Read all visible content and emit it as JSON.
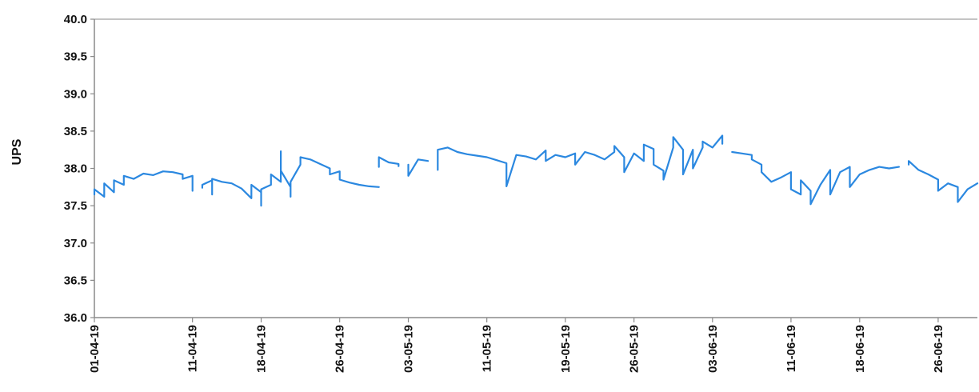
{
  "chart_data": {
    "type": "line",
    "title": "",
    "xlabel": "",
    "ylabel": "UPS",
    "ylim": [
      36.0,
      40.0
    ],
    "yticks": [
      "36.0",
      "36.5",
      "37.0",
      "37.5",
      "38.0",
      "38.5",
      "39.0",
      "39.5",
      "40.0"
    ],
    "xlim": [
      "2019-04-01",
      "2019-06-30"
    ],
    "xticks": [
      {
        "date": "2019-04-01",
        "label": "01-04-19"
      },
      {
        "date": "2019-04-11",
        "label": "11-04-19"
      },
      {
        "date": "2019-04-18",
        "label": "18-04-19"
      },
      {
        "date": "2019-04-26",
        "label": "26-04-19"
      },
      {
        "date": "2019-05-03",
        "label": "03-05-19"
      },
      {
        "date": "2019-05-11",
        "label": "11-05-19"
      },
      {
        "date": "2019-05-19",
        "label": "19-05-19"
      },
      {
        "date": "2019-05-26",
        "label": "26-05-19"
      },
      {
        "date": "2019-06-03",
        "label": "03-06-19"
      },
      {
        "date": "2019-06-11",
        "label": "11-06-19"
      },
      {
        "date": "2019-06-18",
        "label": "18-06-19"
      },
      {
        "date": "2019-06-26",
        "label": "26-06-19"
      }
    ],
    "grid": false,
    "legend": "none",
    "series": [
      {
        "color": "#2b88e0",
        "segments": [
          [
            [
              "2019-04-01",
              37.65
            ],
            [
              "2019-04-01",
              37.72
            ],
            [
              "2019-04-02",
              37.62
            ],
            [
              "2019-04-02",
              37.8
            ],
            [
              "2019-04-03",
              37.68
            ],
            [
              "2019-04-03",
              37.84
            ],
            [
              "2019-04-04",
              37.78
            ],
            [
              "2019-04-04",
              37.9
            ],
            [
              "2019-04-05",
              37.86
            ],
            [
              "2019-04-06",
              37.93
            ],
            [
              "2019-04-07",
              37.91
            ],
            [
              "2019-04-08",
              37.96
            ],
            [
              "2019-04-09",
              37.95
            ],
            [
              "2019-04-10",
              37.92
            ],
            [
              "2019-04-10",
              37.86
            ],
            [
              "2019-04-11",
              37.9
            ],
            [
              "2019-04-11",
              37.7
            ],
            [
              "2019-04-11",
              37.84
            ]
          ],
          [
            [
              "2019-04-12",
              37.74
            ],
            [
              "2019-04-12",
              37.78
            ],
            [
              "2019-04-13",
              37.84
            ],
            [
              "2019-04-13",
              37.65
            ],
            [
              "2019-04-13",
              37.86
            ],
            [
              "2019-04-14",
              37.82
            ],
            [
              "2019-04-15",
              37.8
            ],
            [
              "2019-04-16",
              37.73
            ],
            [
              "2019-04-17",
              37.6
            ],
            [
              "2019-04-17",
              37.78
            ],
            [
              "2019-04-18",
              37.68
            ],
            [
              "2019-04-18",
              37.5
            ],
            [
              "2019-04-18",
              37.72
            ],
            [
              "2019-04-19",
              37.78
            ],
            [
              "2019-04-19",
              37.92
            ],
            [
              "2019-04-20",
              37.82
            ],
            [
              "2019-04-20",
              38.05
            ],
            [
              "2019-04-20",
              38.23
            ],
            [
              "2019-04-20",
              37.97
            ],
            [
              "2019-04-21",
              37.75
            ],
            [
              "2019-04-21",
              37.62
            ],
            [
              "2019-04-21",
              37.82
            ],
            [
              "2019-04-22",
              38.05
            ],
            [
              "2019-04-22",
              38.15
            ],
            [
              "2019-04-23",
              38.12
            ],
            [
              "2019-04-24",
              38.06
            ],
            [
              "2019-04-25",
              38.0
            ],
            [
              "2019-04-25",
              37.92
            ],
            [
              "2019-04-26",
              37.96
            ],
            [
              "2019-04-26",
              37.85
            ],
            [
              "2019-04-27",
              37.81
            ],
            [
              "2019-04-28",
              37.78
            ],
            [
              "2019-04-29",
              37.76
            ],
            [
              "2019-04-30",
              37.75
            ]
          ],
          [
            [
              "2019-04-30",
              38.02
            ],
            [
              "2019-04-30",
              38.15
            ],
            [
              "2019-05-01",
              38.08
            ],
            [
              "2019-05-02",
              38.06
            ],
            [
              "2019-05-02",
              38.03
            ]
          ],
          [
            [
              "2019-05-03",
              38.05
            ],
            [
              "2019-05-03",
              37.9
            ],
            [
              "2019-05-04",
              38.12
            ],
            [
              "2019-05-05",
              38.1
            ]
          ],
          [
            [
              "2019-05-06",
              37.98
            ],
            [
              "2019-05-06",
              38.25
            ],
            [
              "2019-05-07",
              38.28
            ],
            [
              "2019-05-08",
              38.22
            ],
            [
              "2019-05-09",
              38.19
            ],
            [
              "2019-05-10",
              38.17
            ],
            [
              "2019-05-11",
              38.15
            ],
            [
              "2019-05-12",
              38.11
            ],
            [
              "2019-05-13",
              38.07
            ],
            [
              "2019-05-13",
              37.76
            ],
            [
              "2019-05-14",
              38.18
            ],
            [
              "2019-05-15",
              38.16
            ],
            [
              "2019-05-16",
              38.12
            ],
            [
              "2019-05-17",
              38.24
            ],
            [
              "2019-05-17",
              38.1
            ],
            [
              "2019-05-18",
              38.18
            ],
            [
              "2019-05-19",
              38.15
            ],
            [
              "2019-05-20",
              38.2
            ],
            [
              "2019-05-20",
              38.05
            ],
            [
              "2019-05-21",
              38.22
            ],
            [
              "2019-05-22",
              38.18
            ],
            [
              "2019-05-23",
              38.12
            ],
            [
              "2019-05-24",
              38.22
            ],
            [
              "2019-05-24",
              38.3
            ],
            [
              "2019-05-25",
              38.15
            ],
            [
              "2019-05-25",
              37.95
            ],
            [
              "2019-05-26",
              38.2
            ],
            [
              "2019-05-27",
              38.1
            ],
            [
              "2019-05-27",
              38.32
            ],
            [
              "2019-05-28",
              38.26
            ],
            [
              "2019-05-28",
              38.05
            ],
            [
              "2019-05-29",
              37.97
            ],
            [
              "2019-05-29",
              37.85
            ],
            [
              "2019-05-30",
              38.28
            ],
            [
              "2019-05-30",
              38.42
            ],
            [
              "2019-05-31",
              38.25
            ],
            [
              "2019-05-31",
              37.92
            ],
            [
              "2019-06-01",
              38.25
            ],
            [
              "2019-06-01",
              38.0
            ],
            [
              "2019-06-02",
              38.28
            ],
            [
              "2019-06-02",
              38.36
            ],
            [
              "2019-06-03",
              38.28
            ],
            [
              "2019-06-04",
              38.44
            ],
            [
              "2019-06-04",
              38.33
            ]
          ],
          [
            [
              "2019-06-05",
              38.22
            ],
            [
              "2019-06-06",
              38.2
            ],
            [
              "2019-06-07",
              38.18
            ],
            [
              "2019-06-07",
              38.12
            ],
            [
              "2019-06-08",
              38.05
            ],
            [
              "2019-06-08",
              37.95
            ],
            [
              "2019-06-09",
              37.82
            ],
            [
              "2019-06-10",
              37.88
            ],
            [
              "2019-06-11",
              37.95
            ],
            [
              "2019-06-11",
              37.72
            ],
            [
              "2019-06-12",
              37.65
            ],
            [
              "2019-06-12",
              37.84
            ],
            [
              "2019-06-13",
              37.7
            ],
            [
              "2019-06-13",
              37.52
            ],
            [
              "2019-06-14",
              37.78
            ],
            [
              "2019-06-15",
              37.98
            ],
            [
              "2019-06-15",
              37.65
            ],
            [
              "2019-06-16",
              37.95
            ],
            [
              "2019-06-17",
              38.02
            ],
            [
              "2019-06-17",
              37.75
            ],
            [
              "2019-06-18",
              37.92
            ],
            [
              "2019-06-19",
              37.98
            ],
            [
              "2019-06-20",
              38.02
            ],
            [
              "2019-06-21",
              38.0
            ],
            [
              "2019-06-22",
              38.02
            ]
          ],
          [
            [
              "2019-06-23",
              38.05
            ],
            [
              "2019-06-23",
              38.1
            ],
            [
              "2019-06-24",
              37.98
            ],
            [
              "2019-06-25",
              37.92
            ],
            [
              "2019-06-26",
              37.85
            ],
            [
              "2019-06-26",
              37.7
            ],
            [
              "2019-06-27",
              37.8
            ],
            [
              "2019-06-28",
              37.75
            ],
            [
              "2019-06-28",
              37.55
            ],
            [
              "2019-06-29",
              37.72
            ],
            [
              "2019-06-30",
              37.8
            ]
          ]
        ]
      }
    ]
  }
}
